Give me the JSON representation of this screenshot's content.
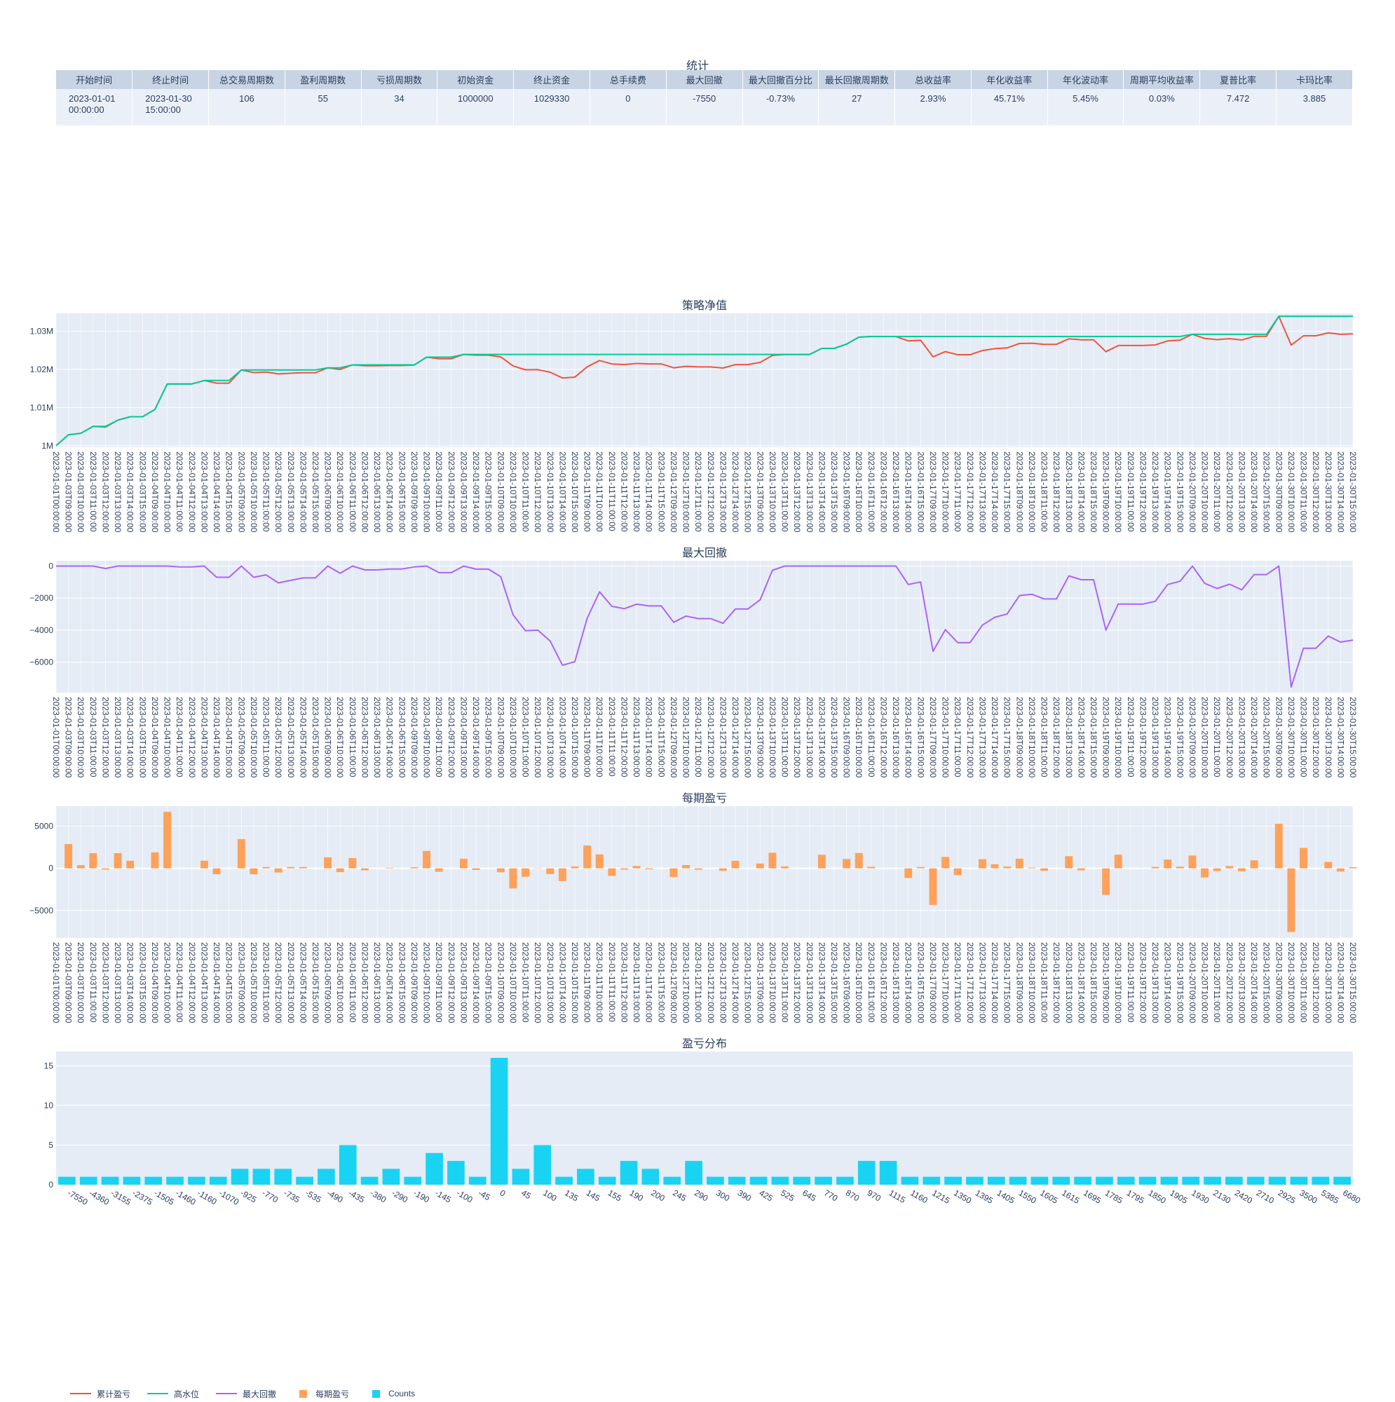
{
  "stats": {
    "title": "统计",
    "headers": [
      "开始时间",
      "终止时间",
      "总交易周期数",
      "盈利周期数",
      "亏损周期数",
      "初始资金",
      "终止资金",
      "总手续费",
      "最大回撤",
      "最大回撤百分比",
      "最长回撤周期数",
      "总收益率",
      "年化收益率",
      "年化波动率",
      "周期平均收益率",
      "夏普比率",
      "卡玛比率"
    ],
    "values": [
      "2023-01-01 00:00:00",
      "2023-01-30 15:00:00",
      "106",
      "55",
      "34",
      "1000000",
      "1029330",
      "0",
      "-7550",
      "-0.73%",
      "27",
      "2.93%",
      "45.71%",
      "5.45%",
      "0.03%",
      "7.472",
      "3.885"
    ]
  },
  "legend": [
    {
      "label": "累计盈亏",
      "color": "#ef553b",
      "kind": "line"
    },
    {
      "label": "高水位",
      "color": "#00cc96",
      "kind": "line"
    },
    {
      "label": "最大回撤",
      "color": "#ab63fa",
      "kind": "line"
    },
    {
      "label": "每期盈亏",
      "color": "#ffa15a",
      "kind": "bar"
    },
    {
      "label": "Counts",
      "color": "#19d3f3",
      "kind": "bar"
    }
  ],
  "chart_data": [
    {
      "type": "line",
      "title": "策略净值",
      "x": [
        "2023-01-01T00:00:00",
        "2023-01-03T09:00:00",
        "2023-01-03T10:00:00",
        "2023-01-03T11:00:00",
        "2023-01-03T12:00:00",
        "2023-01-03T13:00:00",
        "2023-01-03T14:00:00",
        "2023-01-03T15:00:00",
        "2023-01-04T09:00:00",
        "2023-01-04T10:00:00",
        "2023-01-04T11:00:00",
        "2023-01-04T12:00:00",
        "2023-01-04T13:00:00",
        "2023-01-04T14:00:00",
        "2023-01-04T15:00:00",
        "2023-01-05T09:00:00",
        "2023-01-05T10:00:00",
        "2023-01-05T11:00:00",
        "2023-01-05T12:00:00",
        "2023-01-05T13:00:00",
        "2023-01-05T14:00:00",
        "2023-01-05T15:00:00",
        "2023-01-06T09:00:00",
        "2023-01-06T10:00:00",
        "2023-01-06T11:00:00",
        "2023-01-06T12:00:00",
        "2023-01-06T13:00:00",
        "2023-01-06T14:00:00",
        "2023-01-06T15:00:00",
        "2023-01-09T09:00:00",
        "2023-01-09T10:00:00",
        "2023-01-09T11:00:00",
        "2023-01-09T12:00:00",
        "2023-01-09T13:00:00",
        "2023-01-09T14:00:00",
        "2023-01-09T15:00:00",
        "2023-01-10T09:00:00",
        "2023-01-10T10:00:00",
        "2023-01-10T11:00:00",
        "2023-01-10T12:00:00",
        "2023-01-10T13:00:00",
        "2023-01-10T14:00:00",
        "2023-01-10T15:00:00",
        "2023-01-11T09:00:00",
        "2023-01-11T10:00:00",
        "2023-01-11T11:00:00",
        "2023-01-11T12:00:00",
        "2023-01-11T13:00:00",
        "2023-01-11T14:00:00",
        "2023-01-11T15:00:00",
        "2023-01-12T09:00:00",
        "2023-01-12T10:00:00",
        "2023-01-12T11:00:00",
        "2023-01-12T12:00:00",
        "2023-01-12T13:00:00",
        "2023-01-12T14:00:00",
        "2023-01-12T15:00:00",
        "2023-01-13T09:00:00",
        "2023-01-13T10:00:00",
        "2023-01-13T11:00:00",
        "2023-01-13T12:00:00",
        "2023-01-13T13:00:00",
        "2023-01-13T14:00:00",
        "2023-01-13T15:00:00",
        "2023-01-16T09:00:00",
        "2023-01-16T10:00:00",
        "2023-01-16T11:00:00",
        "2023-01-16T12:00:00",
        "2023-01-16T13:00:00",
        "2023-01-16T14:00:00",
        "2023-01-16T15:00:00",
        "2023-01-17T09:00:00",
        "2023-01-17T10:00:00",
        "2023-01-17T11:00:00",
        "2023-01-17T12:00:00",
        "2023-01-17T13:00:00",
        "2023-01-17T14:00:00",
        "2023-01-17T15:00:00",
        "2023-01-18T09:00:00",
        "2023-01-18T10:00:00",
        "2023-01-18T11:00:00",
        "2023-01-18T12:00:00",
        "2023-01-18T13:00:00",
        "2023-01-18T14:00:00",
        "2023-01-18T15:00:00",
        "2023-01-19T09:00:00",
        "2023-01-19T10:00:00",
        "2023-01-19T11:00:00",
        "2023-01-19T12:00:00",
        "2023-01-19T13:00:00",
        "2023-01-19T14:00:00",
        "2023-01-19T15:00:00",
        "2023-01-20T09:00:00",
        "2023-01-20T10:00:00",
        "2023-01-20T11:00:00",
        "2023-01-20T12:00:00",
        "2023-01-20T13:00:00",
        "2023-01-20T14:00:00",
        "2023-01-20T15:00:00",
        "2023-01-30T09:00:00",
        "2023-01-30T10:00:00",
        "2023-01-30T11:00:00",
        "2023-01-30T12:00:00",
        "2023-01-30T13:00:00",
        "2023-01-30T14:00:00",
        "2023-01-30T15:00:00"
      ],
      "series": [
        {
          "name": "累计盈亏",
          "color": "#ef553b",
          "values": [
            1000000,
            1002880,
            1003250,
            1005050,
            1004900,
            1006700,
            1007600,
            1007600,
            1009500,
            1016200,
            1016200,
            1016200,
            1017100,
            1016400,
            1016400,
            1019870,
            1019170,
            1019320,
            1018820,
            1018980,
            1019130,
            1019130,
            1020430,
            1019980,
            1021200,
            1020960,
            1020960,
            1021020,
            1021020,
            1021150,
            1023220,
            1022810,
            1022810,
            1023940,
            1023750,
            1023750,
            1023280,
            1020900,
            1019900,
            1019940,
            1019260,
            1017750,
            1017970,
            1020680,
            1022330,
            1021430,
            1021280,
            1021560,
            1021450,
            1021450,
            1020430,
            1020820,
            1020660,
            1020660,
            1020370,
            1021260,
            1021260,
            1021830,
            1023680,
            1023910,
            1023910,
            1023910,
            1025520,
            1025520,
            1026630,
            1028450,
            1028630,
            1028630,
            1028630,
            1027480,
            1027640,
            1023310,
            1024660,
            1023850,
            1023850,
            1024940,
            1025430,
            1025640,
            1026790,
            1026870,
            1026580,
            1026580,
            1028020,
            1027780,
            1027780,
            1024640,
            1026260,
            1026260,
            1026260,
            1026430,
            1027480,
            1027680,
            1029200,
            1028120,
            1027800,
            1028070,
            1027720,
            1028670,
            1028670,
            1033950,
            1026400,
            1028820,
            1028820,
            1029580,
            1029200,
            1029330
          ]
        },
        {
          "name": "高水位",
          "color": "#00cc96",
          "values": [
            1000000,
            1002880,
            1003250,
            1005050,
            1005050,
            1006700,
            1007600,
            1007600,
            1009500,
            1016200,
            1016200,
            1016200,
            1017100,
            1017100,
            1017100,
            1019870,
            1019870,
            1019870,
            1019870,
            1019870,
            1019870,
            1019870,
            1020430,
            1020430,
            1021200,
            1021200,
            1021200,
            1021200,
            1021200,
            1021200,
            1023220,
            1023220,
            1023220,
            1023940,
            1023940,
            1023940,
            1023940,
            1023940,
            1023940,
            1023940,
            1023940,
            1023940,
            1023940,
            1023940,
            1023940,
            1023940,
            1023940,
            1023940,
            1023940,
            1023940,
            1023940,
            1023940,
            1023940,
            1023940,
            1023940,
            1023940,
            1023940,
            1023940,
            1023940,
            1023940,
            1023940,
            1023940,
            1025520,
            1025520,
            1026630,
            1028450,
            1028630,
            1028630,
            1028630,
            1028630,
            1028630,
            1028630,
            1028630,
            1028630,
            1028630,
            1028630,
            1028630,
            1028630,
            1028630,
            1028630,
            1028630,
            1028630,
            1028630,
            1028630,
            1028630,
            1028630,
            1028630,
            1028630,
            1028630,
            1028630,
            1028630,
            1028630,
            1029200,
            1029200,
            1029200,
            1029200,
            1029200,
            1029200,
            1029200,
            1033950,
            1033950,
            1033950,
            1033950,
            1033950,
            1033950,
            1033950
          ]
        }
      ],
      "ylim": [
        999600,
        1034700
      ],
      "yticks": [
        1000000,
        1010000,
        1020000,
        1030000
      ],
      "ytick_labels": [
        "1M",
        "1.01M",
        "1.02M",
        "1.03M"
      ]
    },
    {
      "type": "line",
      "title": "最大回撤",
      "x_ref": 0,
      "series": [
        {
          "name": "最大回撤",
          "color": "#ab63fa",
          "values": [
            0,
            0,
            0,
            0,
            -150,
            0,
            0,
            0,
            0,
            0,
            -50,
            -50,
            0,
            -700,
            -700,
            0,
            -700,
            -550,
            -1050,
            -890,
            -740,
            -740,
            0,
            -450,
            0,
            -240,
            -240,
            -180,
            -180,
            -50,
            0,
            -410,
            -410,
            0,
            -190,
            -190,
            -660,
            -3040,
            -4040,
            -4000,
            -4680,
            -6190,
            -5970,
            -3260,
            -1610,
            -2510,
            -2660,
            -2380,
            -2490,
            -2490,
            -3510,
            -3120,
            -3280,
            -3280,
            -3570,
            -2680,
            -2680,
            -2110,
            -260,
            0,
            0,
            0,
            0,
            0,
            0,
            0,
            0,
            0,
            0,
            -1150,
            -990,
            -5320,
            -3970,
            -4780,
            -4780,
            -3690,
            -3200,
            -2990,
            -1840,
            -1760,
            -2050,
            -2050,
            -610,
            -850,
            -850,
            -3990,
            -2370,
            -2370,
            -2370,
            -2200,
            -1150,
            -950,
            0,
            -1080,
            -1400,
            -1130,
            -1480,
            -530,
            -530,
            0,
            -7550,
            -5130,
            -5130,
            -4370,
            -4750,
            -4620
          ]
        }
      ],
      "ylim": [
        -7900,
        330
      ],
      "yticks": [
        0,
        -2000,
        -4000,
        -6000
      ],
      "ytick_labels": [
        "0",
        "−2000",
        "−4000",
        "−6000"
      ]
    },
    {
      "type": "bar",
      "title": "每期盈亏",
      "x_ref": 0,
      "series": [
        {
          "name": "每期盈亏",
          "color": "#ffa15a",
          "values": [
            0,
            2880,
            370,
            1800,
            -150,
            1800,
            900,
            0,
            1900,
            6700,
            0,
            0,
            900,
            -700,
            0,
            3470,
            -700,
            150,
            -500,
            160,
            150,
            0,
            1300,
            -450,
            1220,
            -240,
            0,
            60,
            0,
            130,
            2070,
            -410,
            0,
            1130,
            -190,
            0,
            -470,
            -2380,
            -1000,
            40,
            -680,
            -1510,
            220,
            2710,
            1650,
            -900,
            -150,
            280,
            -110,
            0,
            -1020,
            390,
            -160,
            0,
            -290,
            890,
            0,
            570,
            1850,
            230,
            0,
            0,
            1610,
            0,
            1110,
            1820,
            180,
            0,
            0,
            -1150,
            160,
            -4330,
            1350,
            -810,
            0,
            1090,
            490,
            210,
            1150,
            80,
            -290,
            0,
            1440,
            -240,
            0,
            -3140,
            1620,
            0,
            0,
            170,
            1050,
            200,
            1520,
            -1080,
            -320,
            270,
            -350,
            950,
            0,
            5280,
            -7550,
            2420,
            0,
            760,
            -380,
            130
          ]
        }
      ],
      "ylim": [
        -8250,
        7370
      ],
      "yticks": [
        5000,
        0,
        -5000
      ],
      "ytick_labels": [
        "5000",
        "0",
        "−5000"
      ]
    },
    {
      "type": "bar",
      "title": "盈亏分布",
      "categories": [
        "-7550",
        "-4360",
        "-3155",
        "-2375",
        "-1505",
        "-1460",
        "-1160",
        "-1070",
        "-925",
        "-770",
        "-735",
        "-535",
        "-490",
        "-435",
        "-380",
        "-290",
        "-190",
        "-145",
        "-100",
        "-45",
        "0",
        "45",
        "100",
        "135",
        "145",
        "155",
        "190",
        "200",
        "245",
        "290",
        "300",
        "390",
        "425",
        "525",
        "645",
        "770",
        "870",
        "970",
        "1115",
        "1160",
        "1215",
        "1350",
        "1395",
        "1405",
        "1550",
        "1605",
        "1615",
        "1695",
        "1785",
        "1795",
        "1850",
        "1905",
        "1930",
        "2130",
        "2420",
        "2710",
        "2925",
        "3500",
        "5385",
        "6680"
      ],
      "series": [
        {
          "name": "Counts",
          "color": "#19d3f3",
          "values": [
            1,
            1,
            1,
            1,
            1,
            1,
            1,
            1,
            2,
            2,
            2,
            1,
            2,
            5,
            1,
            2,
            1,
            4,
            3,
            1,
            16,
            2,
            5,
            1,
            2,
            1,
            3,
            2,
            1,
            3,
            1,
            1,
            1,
            1,
            1,
            1,
            1,
            3,
            3,
            1,
            1,
            1,
            1,
            1,
            1,
            1,
            1,
            1,
            1,
            1,
            1,
            1,
            1,
            1,
            1,
            1,
            1,
            1,
            1,
            1
          ]
        }
      ],
      "ylim": [
        0,
        16.8
      ],
      "yticks": [
        0,
        5,
        10,
        15
      ]
    }
  ]
}
